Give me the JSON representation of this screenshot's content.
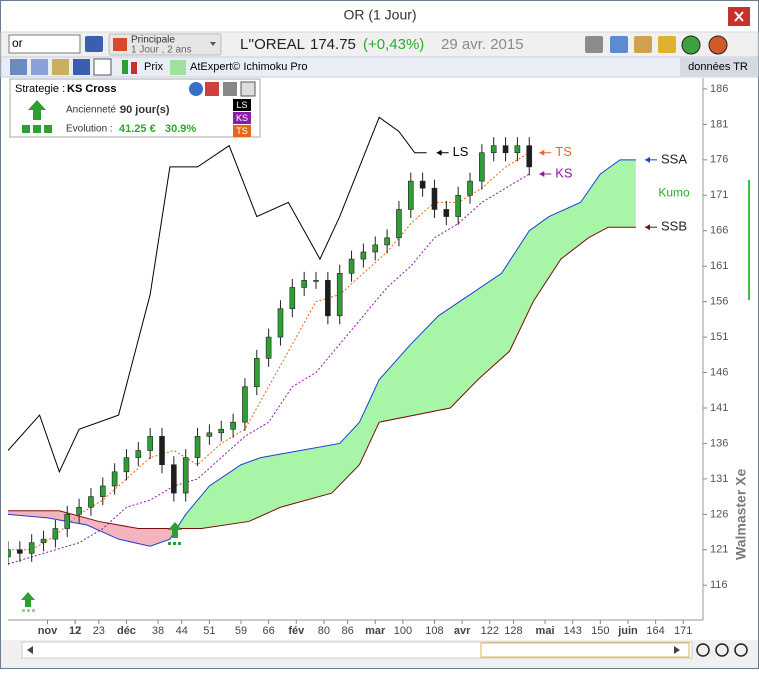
{
  "window": {
    "title": "OR (1 Jour)"
  },
  "toolbar": {
    "search": "or",
    "layout": "Principale",
    "period": "1 Jour , 2 ans",
    "instrument": "L''OREAL",
    "price": "174.75",
    "change": "(+0,43%)",
    "date": "29 avr. 2015",
    "tab_price": "Prix",
    "tab_expert": "AtExpert© Ichimoku Pro",
    "data_source": "données TR"
  },
  "strategy": {
    "label": "Strategie :",
    "name": "KS Cross",
    "age_label": "Ancienneté :",
    "age": "90 jour(s)",
    "evolution_label": "Evolution :",
    "evolution_value": "41.25 €",
    "evolution_pct": "30.9%"
  },
  "watermark": "Walmaster Xe",
  "chart_data": {
    "type": "candlestick",
    "xlim": [
      0,
      176
    ],
    "ylim": [
      111.1,
      187.4
    ],
    "xticks": [
      {
        "value": 10,
        "label": "nov"
      },
      17,
      23,
      {
        "value": 30,
        "label": "déc"
      },
      38,
      44,
      51,
      59,
      66,
      {
        "value": 73,
        "label": "fév"
      },
      80,
      86,
      {
        "value": 93,
        "label": "mar"
      },
      100,
      108,
      {
        "value": 115,
        "label": "avr"
      },
      122,
      128,
      {
        "value": 136,
        "label": "mai"
      },
      143,
      150,
      {
        "value": 157,
        "label": "juin"
      },
      164,
      171
    ],
    "xtick_numbers": [
      {
        "value": 17,
        "label": "12"
      }
    ],
    "yticks": [
      116,
      121,
      126,
      131,
      136,
      141,
      146,
      151,
      156,
      161,
      166,
      171,
      176,
      181,
      186
    ],
    "candles": {
      "up_color": "#2f9e35",
      "down_color": "#1e1e1e",
      "x": [
        0,
        3,
        6,
        9,
        12,
        15,
        18,
        21,
        24,
        27,
        30,
        33,
        36,
        39,
        42,
        45,
        48,
        51,
        54,
        57,
        60,
        63,
        66,
        69,
        72,
        75,
        78,
        81,
        84,
        87,
        90,
        93,
        96,
        99,
        102,
        105,
        108,
        111,
        114,
        117,
        120,
        123,
        126,
        129,
        132
      ],
      "open": [
        120,
        121,
        120.5,
        122,
        122.5,
        124,
        126,
        127,
        128.5,
        130,
        132,
        134,
        135,
        137,
        133,
        129,
        134,
        137,
        137.5,
        138,
        139,
        144,
        148,
        151,
        155,
        158,
        159,
        159,
        154,
        160,
        162,
        163,
        164,
        165,
        169,
        173,
        172,
        169,
        168,
        171,
        173,
        177,
        178,
        177,
        178
      ],
      "high": [
        122.2,
        122.2,
        123.2,
        123.7,
        125.2,
        127.2,
        128.2,
        129.7,
        131.2,
        133.2,
        135.2,
        136.2,
        138.2,
        138.2,
        134.2,
        135.2,
        138.2,
        138.7,
        139.2,
        140.2,
        145.2,
        149.2,
        152.2,
        156.2,
        159.2,
        160.2,
        160.2,
        160.2,
        161.2,
        163.2,
        164.2,
        165.2,
        166.2,
        170.2,
        174.2,
        174.2,
        173.2,
        170.2,
        172.2,
        174.2,
        178.2,
        179.2,
        179.2,
        179.2,
        179.2
      ],
      "low": [
        118.8,
        119.3,
        119.3,
        120.8,
        121.3,
        122.8,
        124.8,
        125.8,
        127.3,
        128.8,
        130.8,
        132.8,
        133.8,
        131.8,
        127.8,
        127.8,
        132.8,
        135.8,
        136.3,
        136.8,
        137.8,
        142.8,
        146.8,
        149.8,
        153.8,
        156.8,
        157.8,
        152.8,
        152.8,
        158.8,
        160.8,
        161.8,
        162.8,
        163.8,
        167.8,
        170.8,
        167.8,
        166.8,
        166.8,
        169.8,
        171.8,
        175.8,
        175.8,
        175.8,
        173.8
      ],
      "close": [
        121,
        120.5,
        122,
        122.5,
        124,
        126,
        127,
        128.5,
        130,
        132,
        134,
        135,
        137,
        133,
        129,
        134,
        137,
        137.5,
        138,
        139,
        144,
        148,
        151,
        155,
        158,
        159,
        159,
        154,
        160,
        162,
        163,
        164,
        165,
        169,
        173,
        172,
        169,
        168,
        171,
        173,
        177,
        178,
        177,
        178,
        175
      ]
    },
    "series": [
      {
        "name": "LS",
        "color": "#000000",
        "dashed": false,
        "x": [
          0,
          8,
          13,
          18,
          28,
          36,
          41,
          48,
          56,
          63,
          71,
          79,
          84,
          89,
          94,
          99,
          103,
          106
        ],
        "values": [
          135,
          140,
          132,
          138,
          140,
          157,
          175,
          175,
          178,
          168,
          170,
          162,
          168,
          175,
          182,
          180,
          177,
          177
        ]
      },
      {
        "name": "TS",
        "color": "#e8661a",
        "dashed": true,
        "x": [
          0,
          6,
          12,
          18,
          24,
          30,
          36,
          42,
          48,
          54,
          60,
          66,
          72,
          78,
          84,
          90,
          96,
          102,
          108,
          114,
          120,
          126,
          132
        ],
        "values": [
          121,
          121,
          123,
          126,
          128,
          131,
          134,
          135,
          133,
          136,
          138,
          144,
          150,
          156,
          157,
          160,
          163,
          167,
          170,
          170,
          172,
          175,
          177
        ]
      },
      {
        "name": "KS",
        "color": "#8b1aa8",
        "dashed": true,
        "x": [
          0,
          6,
          12,
          18,
          24,
          30,
          36,
          42,
          48,
          54,
          60,
          66,
          72,
          78,
          84,
          90,
          96,
          102,
          108,
          114,
          120,
          126,
          132
        ],
        "values": [
          119,
          120,
          121,
          122,
          124,
          127,
          128,
          130,
          131,
          134,
          137,
          139,
          144,
          146,
          150,
          154,
          158,
          161,
          165,
          167,
          170,
          172,
          174
        ]
      },
      {
        "name": "SSA",
        "color": "#1f3fd8",
        "dashed": false,
        "x": [
          0,
          10,
          20,
          28,
          36,
          41,
          45,
          51,
          59,
          64,
          74,
          84,
          89,
          94,
          102,
          109,
          117,
          125,
          132,
          137,
          145,
          150,
          155,
          159
        ],
        "values": [
          126,
          125.5,
          124.5,
          122.5,
          121.5,
          122.5,
          126,
          130,
          133,
          134,
          135,
          136,
          139,
          145,
          150,
          154,
          157,
          160,
          166,
          168,
          170,
          174,
          176,
          176
        ]
      },
      {
        "name": "SSB",
        "color": "#7a0d0d",
        "dashed": false,
        "x": [
          0,
          13,
          23,
          33,
          41,
          49,
          61,
          69,
          82,
          89,
          94,
          112,
          119,
          127,
          133,
          140,
          147,
          152,
          159
        ],
        "values": [
          126.5,
          126.5,
          125,
          124,
          124,
          124,
          125,
          127,
          129,
          133,
          139,
          141,
          145,
          149,
          156,
          162,
          165,
          166.5,
          166.5
        ]
      }
    ],
    "cloud_label": "Kumo",
    "cloud_colors": [
      "#a8f5a8",
      "#f4b4be"
    ]
  }
}
